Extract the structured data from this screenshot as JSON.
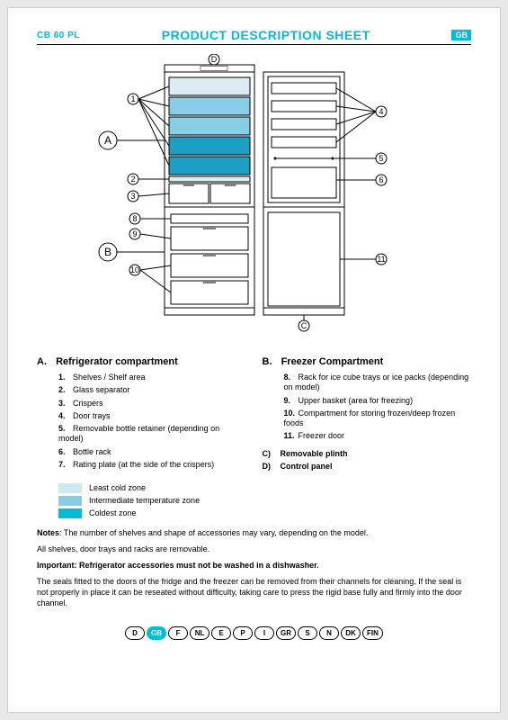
{
  "header": {
    "model": "CB 60 PL",
    "title": "PRODUCT DESCRIPTION SHEET",
    "lang": "GB"
  },
  "sectionA": {
    "letter": "A.",
    "title": "Refrigerator compartment",
    "items": [
      {
        "n": "1.",
        "t": "Shelves / Shelf area"
      },
      {
        "n": "2.",
        "t": "Glass separator"
      },
      {
        "n": "3.",
        "t": "Crispers"
      },
      {
        "n": "4.",
        "t": "Door trays"
      },
      {
        "n": "5.",
        "t": "Removable bottle retainer (depending on model)"
      },
      {
        "n": "6.",
        "t": "Bottle rack"
      },
      {
        "n": "7.",
        "t": "Rating plate (at the side of the crispers)"
      }
    ]
  },
  "sectionB": {
    "letter": "B.",
    "title": "Freezer Compartment",
    "items": [
      {
        "n": "8.",
        "t": "Rack for ice cube trays or ice packs (depending on model)"
      },
      {
        "n": "9.",
        "t": "Upper basket (area for freezing)"
      },
      {
        "n": "10.",
        "t": "Compartment for storing frozen/deep frozen foods"
      },
      {
        "n": "11.",
        "t": "Freezer door"
      }
    ],
    "lettered": [
      {
        "l": "C)",
        "t": "Removable plinth"
      },
      {
        "l": "D)",
        "t": "Control panel"
      }
    ]
  },
  "legend": {
    "rows": [
      {
        "color": "#cfe9f2",
        "label": "Least cold zone"
      },
      {
        "color": "#86cde5",
        "label": "Intermediate temperature zone"
      },
      {
        "color": "#00bcd4",
        "label": "Coldest zone"
      }
    ]
  },
  "notes": {
    "line1": "Notes: The number of shelves and shape of accessories may vary, depending on the model.",
    "line2": "All shelves, door trays and racks are removable.",
    "important": "Important: Refrigerator accessories must not be washed in a dishwasher.",
    "line3": "The seals fitted to the doors of the fridge and the freezer can be removed from their channels for cleaning. If the seal is not properly in place it can be reseated without difficulty, taking care to press the rigid base fully and firmly into the door channel."
  },
  "footerLangs": [
    "D",
    "GB",
    "F",
    "NL",
    "E",
    "P",
    "I",
    "GR",
    "S",
    "N",
    "DK",
    "FIN"
  ],
  "footerActive": "GB",
  "diagram": {
    "colors": {
      "leastCold": "#dcecf0",
      "intermediate": "#86cde5",
      "coldest": "#1d9ec4",
      "line": "#000000"
    },
    "callouts": {
      "A": "A",
      "B": "B",
      "C": "C",
      "D": "D",
      "n1": "1",
      "n2": "2",
      "n3": "3",
      "n4": "4",
      "n5": "5",
      "n6": "6",
      "n8": "8",
      "n9": "9",
      "n10": "10",
      "n11": "11"
    }
  }
}
